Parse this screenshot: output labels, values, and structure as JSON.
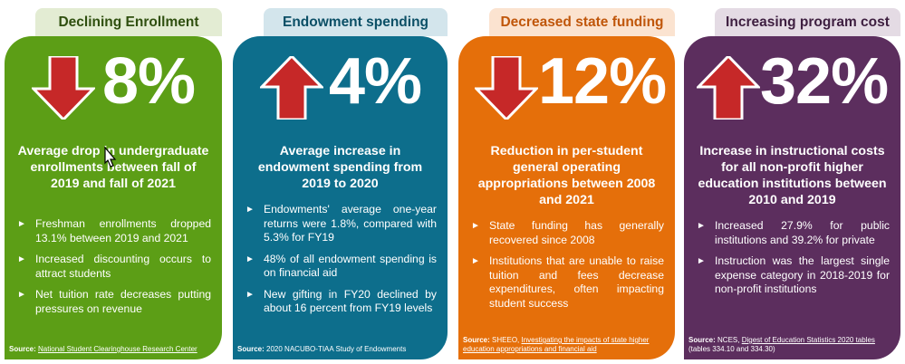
{
  "cards": [
    {
      "title": "Declining Enrollment",
      "value": "8%",
      "headline": "Average drop in undergraduate enrollments between fall of 2019 and fall of 2021",
      "bullets": [
        "Freshman enrollments dropped 13.1% between 2019 and 2021",
        "Increased discounting occurs to attract students",
        "Net tuition rate decreases putting pressures on revenue"
      ],
      "source_label": "Source:",
      "source_link": "National Student Clearinghouse Research Center",
      "source_suffix": "",
      "arrow": "down-arrow-icon",
      "colors": {
        "body": "#5c9e16",
        "tab_bg": "#e3ecd3",
        "tab_text": "#2f4f0f"
      }
    },
    {
      "title": "Endowment spending",
      "value": "4%",
      "headline": "Average increase in endowment spending from 2019 to 2020",
      "bullets": [
        "Endowments' average one-year returns were 1.8%, compared with 5.3% for FY19",
        "48% of all endowment spending is on financial aid",
        "New gifting in FY20 declined by about 16 percent from FY19 levels"
      ],
      "source_label": "Source:",
      "source_link": "",
      "source_suffix": "2020 NACUBO-TIAA Study of Endowments",
      "arrow": "up-arrow-icon",
      "colors": {
        "body": "#0d6e8c",
        "tab_bg": "#d3e5ec",
        "tab_text": "#0b4f66"
      }
    },
    {
      "title": "Decreased state funding",
      "value": "12%",
      "headline": "Reduction in per-student general operating appropriations between 2008 and 2021",
      "bullets": [
        "State funding has generally recovered since 2008",
        "Institutions that are unable to raise tuition and fees decrease expenditures, often impacting student success"
      ],
      "source_label": "Source:",
      "source_link": "Investigating the impacts of state higher education appropriations and financial aid",
      "source_prefix": "SHEEO,",
      "source_suffix": "",
      "arrow": "down-arrow-icon",
      "colors": {
        "body": "#e56f0a",
        "tab_bg": "#fbe3d0",
        "tab_text": "#c0560a"
      }
    },
    {
      "title": "Increasing program cost",
      "value": "32%",
      "headline": "Increase in instructional costs for all non-profit higher education institutions between 2010 and 2019",
      "bullets": [
        "Increased 27.9% for public institutions and 39.2% for private",
        "Instruction was the largest single expense category in 2018-2019 for non-profit institutions"
      ],
      "source_label": "Source:",
      "source_prefix": "NCES,",
      "source_link": "Digest of Education Statistics 2020 tables",
      "source_suffix": "(tables 334.10 and 334.30)",
      "arrow": "up-arrow-icon",
      "colors": {
        "body": "#5c2e5e",
        "tab_bg": "#e4dbe4",
        "tab_text": "#3e1f40"
      }
    }
  ],
  "arrow_color": "#c62828"
}
